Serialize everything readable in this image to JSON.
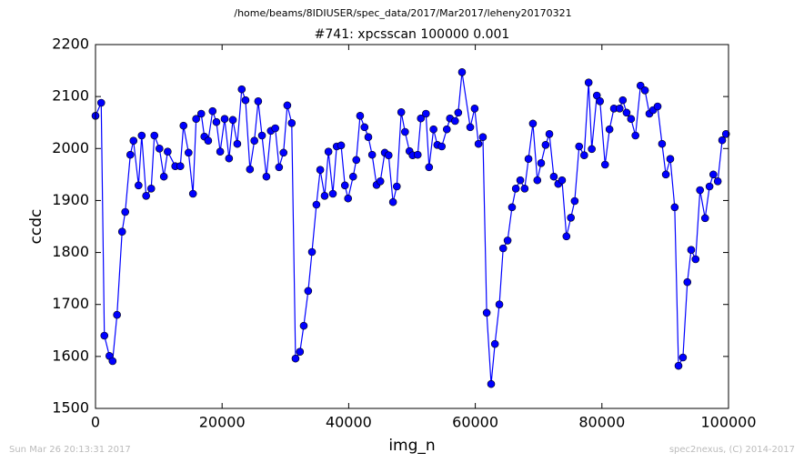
{
  "chart_data": {
    "type": "line",
    "subtitle": "/home/beams/8IDIUSER/spec_data/2017/Mar2017/leheny20170321",
    "title": "#741: xpcsscan 100000 0.001",
    "x_label": "img_n",
    "y_label": "ccdc",
    "footer_left": "Sun Mar 26 20:13:31 2017",
    "footer_right": "spec2nexus, (C) 2014-2017",
    "xlim": [
      0,
      100000
    ],
    "xticks": [
      0,
      20000,
      40000,
      60000,
      80000,
      100000
    ],
    "ylim": [
      1500,
      2200
    ],
    "yticks": [
      1500,
      1600,
      1700,
      1800,
      1900,
      2000,
      2100,
      2200
    ],
    "x": [
      0,
      900,
      1400,
      2200,
      2700,
      3400,
      4200,
      4700,
      5500,
      6000,
      6800,
      7300,
      8000,
      8800,
      9300,
      10100,
      10800,
      11400,
      12600,
      13400,
      13900,
      14700,
      15400,
      15900,
      16700,
      17200,
      17800,
      18500,
      19100,
      19700,
      20400,
      21100,
      21700,
      22400,
      23100,
      23700,
      24400,
      25100,
      25700,
      26300,
      27000,
      27700,
      28400,
      29000,
      29700,
      30300,
      31000,
      31600,
      32300,
      32900,
      33600,
      34200,
      34900,
      35500,
      36200,
      36800,
      37500,
      38100,
      38800,
      39400,
      39900,
      40700,
      41200,
      41800,
      42500,
      43100,
      43700,
      44400,
      45000,
      45700,
      46300,
      47000,
      47600,
      48300,
      48900,
      49600,
      50100,
      50900,
      51400,
      52200,
      52700,
      53400,
      54000,
      54700,
      55500,
      56000,
      56800,
      57300,
      57900,
      59200,
      59900,
      60500,
      61200,
      61800,
      62500,
      63100,
      63800,
      64400,
      65100,
      65800,
      66400,
      67100,
      67800,
      68400,
      69100,
      69800,
      70400,
      71100,
      71700,
      72400,
      73100,
      73700,
      74400,
      75100,
      75700,
      76400,
      77200,
      77900,
      78400,
      79200,
      79700,
      80500,
      81200,
      81900,
      82800,
      83300,
      83900,
      84600,
      85300,
      86100,
      86800,
      87500,
      88100,
      88800,
      89500,
      90100,
      90800,
      91500,
      92100,
      92800,
      93500,
      94100,
      94800,
      95500,
      96300,
      97000,
      97600,
      98300,
      99000,
      99600
    ],
    "series": [
      {
        "color": "#0000ff",
        "values": [
          2063,
          2088,
          1640,
          1601,
          1591,
          1680,
          1840,
          1878,
          1988,
          2015,
          1929,
          2025,
          1909,
          1923,
          2025,
          2000,
          1946,
          1994,
          1966,
          1966,
          2044,
          1992,
          1913,
          2057,
          2067,
          2023,
          2015,
          2072,
          2051,
          1994,
          2057,
          1981,
          2055,
          2009,
          2114,
          2093,
          1960,
          2015,
          2091,
          2025,
          1946,
          2034,
          2039,
          1964,
          1992,
          2083,
          2049,
          1596,
          1609,
          1659,
          1726,
          1801,
          1892,
          1959,
          1909,
          1994,
          1913,
          2004,
          2006,
          1929,
          1904,
          1946,
          1978,
          2063,
          2041,
          2022,
          1988,
          1930,
          1937,
          1992,
          1987,
          1897,
          1927,
          2070,
          2032,
          1995,
          1987,
          1988,
          2058,
          2067,
          1964,
          2037,
          2007,
          2004,
          2037,
          2058,
          2053,
          2069,
          2147,
          2041,
          2077,
          2009,
          2022,
          1684,
          1547,
          1624,
          1700,
          1808,
          1823,
          1887,
          1923,
          1939,
          1923,
          1980,
          2048,
          1939,
          1972,
          2007,
          2028,
          1946,
          1932,
          1939,
          1831,
          1867,
          1899,
          2004,
          1987,
          2127,
          1999,
          2102,
          2091,
          1969,
          2037,
          2077,
          2077,
          2093,
          2069,
          2057,
          2025,
          2121,
          2112,
          2067,
          2074,
          2081,
          2009,
          1950,
          1980,
          1887,
          1582,
          1598,
          1743,
          1805,
          1787,
          1920,
          1866,
          1927,
          1950,
          1937,
          2016,
          2028
        ]
      }
    ]
  }
}
